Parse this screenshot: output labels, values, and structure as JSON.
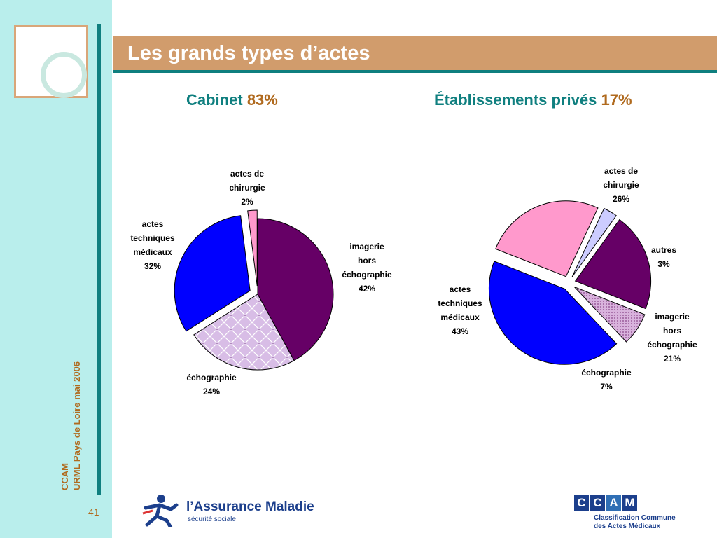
{
  "slide": {
    "title": "Les grands types d’actes",
    "footer_line1": "CCAM",
    "footer_line2": "URML Pays de Loire mai 2006",
    "page_number": "41"
  },
  "logos": {
    "assurance_maladie": "l’Assurance Maladie",
    "assurance_maladie_sub": "sécurité sociale",
    "ccam_letters": [
      "C",
      "C",
      "A",
      "M"
    ],
    "ccam_sub_1": "Classification Commune",
    "ccam_sub_2": "des Actes Médicaux"
  },
  "colors": {
    "teal": "#0f7f7f",
    "brown": "#b06a1e",
    "title_bar": "#d19c6c",
    "sidebar": "#b9eeec"
  },
  "chart_data": [
    {
      "type": "pie",
      "title": "Cabinet",
      "title_pct": "83%",
      "slices": [
        {
          "label": [
            "imagerie",
            "hors",
            "échographie",
            "42%"
          ],
          "value": 42,
          "color": "#660066",
          "pattern": "none",
          "exploded": false
        },
        {
          "label": [
            "échographie",
            "24%"
          ],
          "value": 24,
          "color": "#ccaadd",
          "pattern": "grid",
          "exploded": false
        },
        {
          "label": [
            "actes",
            "techniques",
            "médicaux",
            "32%"
          ],
          "value": 32,
          "color": "#0000ff",
          "pattern": "none",
          "exploded": true
        },
        {
          "label": [
            "actes de",
            "chirurgie",
            "2%"
          ],
          "value": 2,
          "color": "#ff99cc",
          "pattern": "none",
          "exploded": true
        }
      ]
    },
    {
      "type": "pie",
      "title": "Établissements privés",
      "title_pct": "17%",
      "slices": [
        {
          "label": [
            "autres",
            "3%"
          ],
          "value": 3,
          "color": "#ccccff",
          "pattern": "none",
          "exploded": true
        },
        {
          "label": [
            "imagerie",
            "hors",
            "échographie",
            "21%"
          ],
          "value": 21,
          "color": "#660066",
          "pattern": "none",
          "exploded": true
        },
        {
          "label": [
            "échographie",
            "7%"
          ],
          "value": 7,
          "color": "#ccaadd",
          "pattern": "dots",
          "exploded": true
        },
        {
          "label": [
            "actes",
            "techniques",
            "médicaux",
            "43%"
          ],
          "value": 43,
          "color": "#0000ff",
          "pattern": "none",
          "exploded": true
        },
        {
          "label": [
            "actes de",
            "chirurgie",
            "26%"
          ],
          "value": 26,
          "color": "#ff99cc",
          "pattern": "none",
          "exploded": true
        }
      ]
    }
  ]
}
